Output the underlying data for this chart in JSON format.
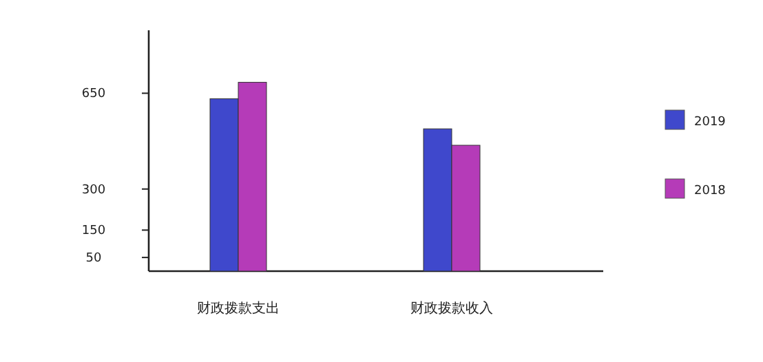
{
  "chart_data": {
    "type": "bar",
    "categories": [
      "财政拨款支出",
      "财政拨款收入"
    ],
    "series": [
      {
        "name": "2019",
        "color": "#3f48cc",
        "values": [
          630,
          520
        ]
      },
      {
        "name": "2018",
        "color": "#b53bb8",
        "values": [
          690,
          460
        ]
      }
    ],
    "ylim": [
      0,
      880
    ],
    "yticks": [
      50,
      150,
      300,
      650
    ],
    "grid": false,
    "legend": "right"
  }
}
